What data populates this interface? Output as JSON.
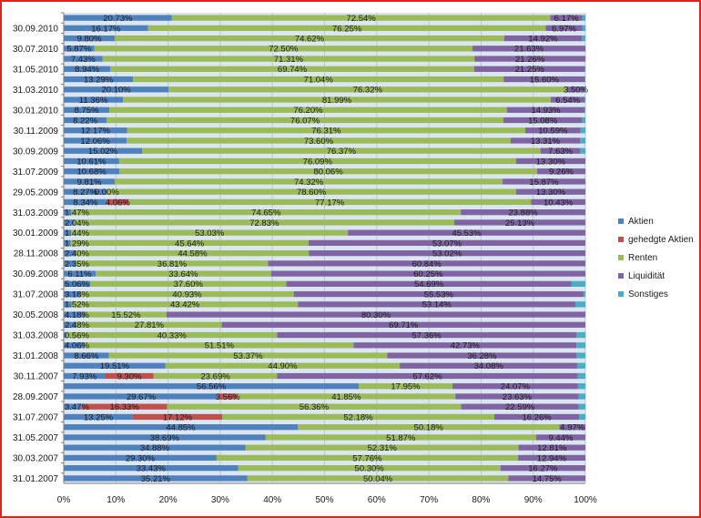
{
  "chart_data": {
    "type": "bar",
    "orientation": "horizontal",
    "stacked": "percent",
    "title": "",
    "xlabel": "",
    "ylabel": "",
    "xlim": [
      0,
      100
    ],
    "grid": true,
    "legend_position": "right",
    "x_ticks": [
      "0%",
      "10%",
      "20%",
      "30%",
      "40%",
      "50%",
      "60%",
      "70%",
      "80%",
      "90%",
      "100%"
    ],
    "series_names": [
      "Aktien",
      "gehedgte Aktien",
      "Renten",
      "Liquidität",
      "Sonstiges"
    ],
    "series_colors": [
      "#4f81bd",
      "#c0504d",
      "#9bbb59",
      "#8064a2",
      "#4bacc6"
    ],
    "rows": [
      {
        "label": "",
        "values": [
          20.73,
          0,
          72.54,
          6.17,
          0.56
        ],
        "labels": [
          "20.73%",
          "",
          "72.54%",
          "6.17%",
          ""
        ]
      },
      {
        "label": "30.09.2010",
        "values": [
          16.17,
          0,
          76.25,
          6.97,
          0.61
        ],
        "labels": [
          "16.17%",
          "",
          "76.25%",
          "6.97%",
          ""
        ]
      },
      {
        "label": "",
        "values": [
          9.8,
          0,
          74.62,
          14.92,
          0.66
        ],
        "labels": [
          "9.80%",
          "",
          "74.62%",
          "14.92%",
          ""
        ]
      },
      {
        "label": "30.07.2010",
        "values": [
          5.87,
          0,
          72.5,
          21.63,
          0
        ],
        "labels": [
          "5.87%",
          "",
          "72.50%",
          "21.63%",
          ""
        ]
      },
      {
        "label": "",
        "values": [
          7.43,
          0,
          71.31,
          21.26,
          0
        ],
        "labels": [
          "7.43%",
          "",
          "71.31%",
          "21.26%",
          ""
        ]
      },
      {
        "label": "31.05.2010",
        "values": [
          8.94,
          0,
          69.74,
          21.25,
          0.07
        ],
        "labels": [
          "8.94%",
          "",
          "69.74%",
          "21.25%",
          ""
        ]
      },
      {
        "label": "",
        "values": [
          13.29,
          0,
          71.04,
          15.6,
          0.07
        ],
        "labels": [
          "13.29%",
          "",
          "71.04%",
          "15.60%",
          ""
        ]
      },
      {
        "label": "31.03.2010",
        "values": [
          20.1,
          0,
          76.32,
          3.5,
          0.08
        ],
        "labels": [
          "20.10%",
          "",
          "76.32%",
          "3.50%",
          ""
        ]
      },
      {
        "label": "",
        "values": [
          11.36,
          0,
          81.99,
          6.54,
          0.11
        ],
        "labels": [
          "11.36%",
          "",
          "81.99%",
          "6.54%",
          ""
        ]
      },
      {
        "label": "30.01.2010",
        "values": [
          8.75,
          0,
          76.2,
          14.93,
          0.12
        ],
        "labels": [
          "8.75%",
          "",
          "76.20%",
          "14.93%",
          ""
        ]
      },
      {
        "label": "",
        "values": [
          8.22,
          0,
          76.07,
          15.08,
          0.63
        ],
        "labels": [
          "8.22%",
          "",
          "76.07%",
          "15.08%",
          ""
        ]
      },
      {
        "label": "30.11.2009",
        "values": [
          12.17,
          0,
          76.31,
          10.59,
          0.93
        ],
        "labels": [
          "12.17%",
          "",
          "76.31%",
          "10.59%",
          ""
        ]
      },
      {
        "label": "",
        "values": [
          12.06,
          0,
          73.6,
          13.31,
          1.03
        ],
        "labels": [
          "12.06%",
          "",
          "73.60%",
          "13.31%",
          ""
        ]
      },
      {
        "label": "30.09.2009",
        "values": [
          15.02,
          0,
          76.37,
          7.63,
          0.98
        ],
        "labels": [
          "15.02%",
          "",
          "76.37%",
          "7.63%",
          ""
        ]
      },
      {
        "label": "",
        "values": [
          10.61,
          0,
          76.09,
          13.3,
          0
        ],
        "labels": [
          "10.61%",
          "",
          "76.09%",
          "13.30%",
          ""
        ]
      },
      {
        "label": "31.07.2009",
        "values": [
          10.68,
          0,
          80.06,
          9.26,
          0
        ],
        "labels": [
          "10.68%",
          "",
          "80.06%",
          "9.26%",
          ""
        ]
      },
      {
        "label": "",
        "values": [
          9.81,
          0,
          74.32,
          15.87,
          0
        ],
        "labels": [
          "9.81%",
          "",
          "74.32%",
          "15.87%",
          ""
        ]
      },
      {
        "label": "29.05.2009",
        "values": [
          8.27,
          0.0,
          78.6,
          13.3,
          0
        ],
        "labels": [
          "8.27%",
          "0.00%",
          "78.60%",
          "13.30%",
          ""
        ]
      },
      {
        "label": "",
        "values": [
          8.34,
          4.06,
          77.17,
          10.43,
          0
        ],
        "labels": [
          "8.34%",
          "4.06%",
          "77.17%",
          "10.43%",
          ""
        ]
      },
      {
        "label": "31.03.2009",
        "values": [
          1.47,
          0,
          74.65,
          23.88,
          0
        ],
        "labels": [
          "1.47%",
          "",
          "74.65%",
          "23.88%",
          ""
        ]
      },
      {
        "label": "",
        "values": [
          2.04,
          0,
          72.83,
          25.13,
          0
        ],
        "labels": [
          "2.04%",
          "",
          "72.83%",
          "25.13%",
          ""
        ]
      },
      {
        "label": "30.01.2009",
        "values": [
          1.44,
          0,
          53.03,
          45.53,
          0
        ],
        "labels": [
          "1.44%",
          "",
          "53.03%",
          "45.53%",
          ""
        ]
      },
      {
        "label": "",
        "values": [
          1.29,
          0,
          45.64,
          53.07,
          0
        ],
        "labels": [
          "1.29%",
          "",
          "45.64%",
          "53.07%",
          ""
        ]
      },
      {
        "label": "28.11.2008",
        "values": [
          2.4,
          0,
          44.58,
          53.02,
          0
        ],
        "labels": [
          "2.40%",
          "",
          "44.58%",
          "53.02%",
          ""
        ]
      },
      {
        "label": "",
        "values": [
          2.35,
          0,
          36.81,
          60.84,
          0
        ],
        "labels": [
          "2.35%",
          "",
          "36.81%",
          "60.84%",
          ""
        ]
      },
      {
        "label": "30.09.2008",
        "values": [
          6.11,
          0,
          33.64,
          60.25,
          0
        ],
        "labels": [
          "6.11%",
          "",
          "33.64%",
          "60.25%",
          ""
        ]
      },
      {
        "label": "",
        "values": [
          5.06,
          0,
          37.6,
          54.69,
          2.65
        ],
        "labels": [
          "5.06%",
          "",
          "37.60%",
          "54.69%",
          ""
        ]
      },
      {
        "label": "31.07.2008",
        "values": [
          3.18,
          0,
          40.93,
          55.53,
          0.36
        ],
        "labels": [
          "3.18%",
          "",
          "40.93%",
          "55.53%",
          ""
        ]
      },
      {
        "label": "",
        "values": [
          1.52,
          0,
          43.42,
          53.14,
          1.92
        ],
        "labels": [
          "1.52%",
          "",
          "43.42%",
          "53.14%",
          ""
        ]
      },
      {
        "label": "30.05.2008",
        "values": [
          4.18,
          0,
          15.52,
          80.3,
          0
        ],
        "labels": [
          "4.18%",
          "",
          "15.52%",
          "80.30%",
          ""
        ]
      },
      {
        "label": "",
        "values": [
          2.48,
          0,
          27.81,
          69.71,
          0
        ],
        "labels": [
          "2.48%",
          "",
          "27.81%",
          "69.71%",
          ""
        ]
      },
      {
        "label": "31.03.2008",
        "values": [
          0.56,
          0,
          40.33,
          57.36,
          1.75
        ],
        "labels": [
          "0.56%",
          "",
          "40.33%",
          "57.36%",
          ""
        ]
      },
      {
        "label": "",
        "values": [
          4.06,
          0,
          51.51,
          42.73,
          1.7
        ],
        "labels": [
          "4.06%",
          "",
          "51.51%",
          "42.73%",
          ""
        ]
      },
      {
        "label": "31.01.2008",
        "values": [
          8.66,
          0,
          53.37,
          36.28,
          1.69
        ],
        "labels": [
          "8.66%",
          "",
          "53.37%",
          "36.28%",
          ""
        ]
      },
      {
        "label": "",
        "values": [
          19.51,
          0,
          44.9,
          34.08,
          1.51
        ],
        "labels": [
          "19.51%",
          "",
          "44.90%",
          "34.08%",
          ""
        ]
      },
      {
        "label": "30.11.2007",
        "values": [
          7.93,
          9.3,
          23.69,
          57.62,
          1.46
        ],
        "labels": [
          "7.93%",
          "9.30%",
          "23.69%",
          "57.62%",
          ""
        ]
      },
      {
        "label": "",
        "values": [
          56.56,
          0,
          17.95,
          24.07,
          1.42
        ],
        "labels": [
          "56.56%",
          "",
          "17.95%",
          "24.07%",
          ""
        ]
      },
      {
        "label": "28.09.2007",
        "values": [
          29.67,
          3.56,
          41.85,
          23.63,
          1.29
        ],
        "labels": [
          "29.67%",
          "3.56%",
          "41.85%",
          "23.63%",
          ""
        ]
      },
      {
        "label": "",
        "values": [
          3.47,
          16.33,
          56.36,
          22.59,
          1.25
        ],
        "labels": [
          "3.47%",
          "16.33%",
          "56.36%",
          "22.59%",
          ""
        ]
      },
      {
        "label": "31.07.2007",
        "values": [
          13.25,
          17.12,
          52.18,
          16.26,
          1.19
        ],
        "labels": [
          "13.25%",
          "17.12%",
          "52.18%",
          "16.26%",
          ""
        ]
      },
      {
        "label": "",
        "values": [
          44.85,
          0,
          50.18,
          4.97,
          0
        ],
        "labels": [
          "44.85%",
          "",
          "50.18%",
          "4.97%",
          ""
        ]
      },
      {
        "label": "31.05.2007",
        "values": [
          38.69,
          0,
          51.87,
          9.44,
          0
        ],
        "labels": [
          "38.69%",
          "",
          "51.87%",
          "9.44%",
          ""
        ]
      },
      {
        "label": "",
        "values": [
          34.88,
          0,
          52.31,
          12.81,
          0
        ],
        "labels": [
          "34.88%",
          "",
          "52.31%",
          "12.81%",
          ""
        ]
      },
      {
        "label": "30.03.2007",
        "values": [
          29.3,
          0,
          57.76,
          12.94,
          0
        ],
        "labels": [
          "29.30%",
          "",
          "57.76%",
          "12.94%",
          ""
        ]
      },
      {
        "label": "",
        "values": [
          33.43,
          0,
          50.3,
          16.27,
          0
        ],
        "labels": [
          "33.43%",
          "",
          "50.30%",
          "16.27%",
          ""
        ]
      },
      {
        "label": "31.01.2007",
        "values": [
          35.21,
          0,
          50.04,
          14.75,
          0
        ],
        "labels": [
          "35.21%",
          "",
          "50.04%",
          "14.75%",
          ""
        ]
      }
    ]
  }
}
